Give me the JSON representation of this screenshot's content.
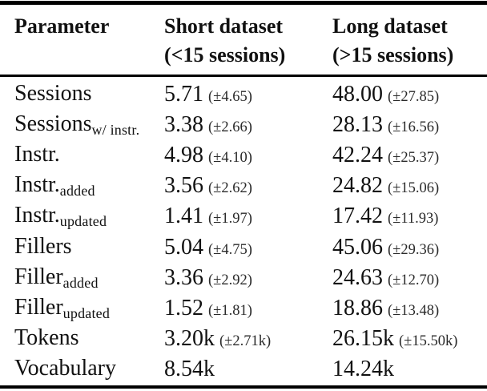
{
  "table": {
    "columns": [
      {
        "label": "Parameter",
        "sublabel": ""
      },
      {
        "label": "Short dataset",
        "sublabel": "(<15 sessions)"
      },
      {
        "label": "Long dataset",
        "sublabel": "(>15 sessions)"
      }
    ],
    "rows": [
      {
        "param": "Sessions",
        "param_sub": "",
        "short": "5.71",
        "short_sd": "(±4.65)",
        "long": "48.00",
        "long_sd": "(±27.85)"
      },
      {
        "param": "Sessions",
        "param_sub": "w/ instr.",
        "short": "3.38",
        "short_sd": "(±2.66)",
        "long": "28.13",
        "long_sd": "(±16.56)"
      },
      {
        "param": "Instr.",
        "param_sub": "",
        "short": "4.98",
        "short_sd": "(±4.10)",
        "long": "42.24",
        "long_sd": "(±25.37)"
      },
      {
        "param": "Instr.",
        "param_sub": "added",
        "short": "3.56",
        "short_sd": "(±2.62)",
        "long": "24.82",
        "long_sd": "(±15.06)"
      },
      {
        "param": "Instr.",
        "param_sub": "updated",
        "short": "1.41",
        "short_sd": "(±1.97)",
        "long": "17.42",
        "long_sd": "(±11.93)"
      },
      {
        "param": "Fillers",
        "param_sub": "",
        "short": "5.04",
        "short_sd": "(±4.75)",
        "long": "45.06",
        "long_sd": "(±29.36)"
      },
      {
        "param": "Filler",
        "param_sub": "added",
        "short": "3.36",
        "short_sd": "(±2.92)",
        "long": "24.63",
        "long_sd": "(±12.70)"
      },
      {
        "param": "Filler",
        "param_sub": "updated",
        "short": "1.52",
        "short_sd": "(±1.81)",
        "long": "18.86",
        "long_sd": "(±13.48)"
      },
      {
        "param": "Tokens",
        "param_sub": "",
        "short": "3.20k",
        "short_sd": "(±2.71k)",
        "long": "26.15k",
        "long_sd": "(±15.50k)"
      },
      {
        "param": "Vocabulary",
        "param_sub": "",
        "short": "8.54k",
        "short_sd": "",
        "long": "14.24k",
        "long_sd": ""
      }
    ]
  }
}
